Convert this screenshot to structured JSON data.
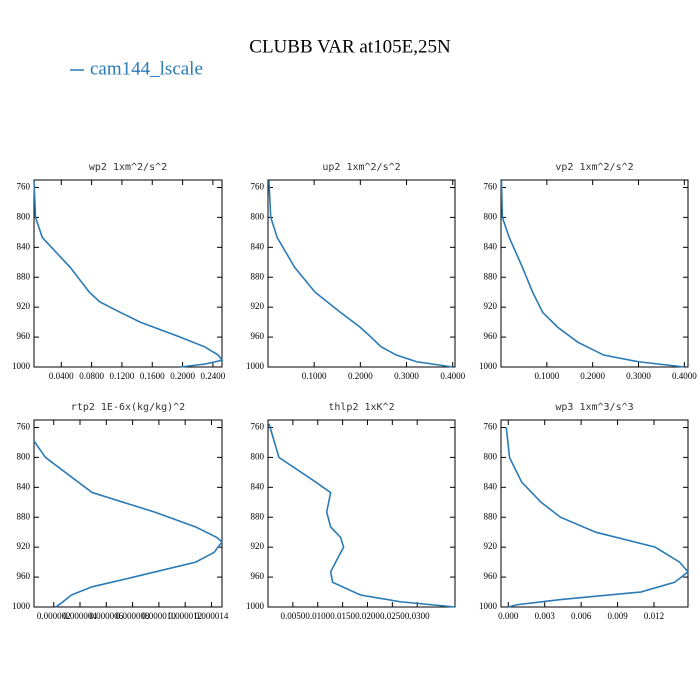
{
  "title": "CLUBB VAR at105E,25N",
  "chart_data": [
    {
      "type": "line",
      "title": "wp2   1xm^2/s^2",
      "y": [
        751,
        800,
        827,
        867,
        900,
        913,
        927,
        940,
        960,
        973,
        984,
        991,
        996,
        1000
      ],
      "series": [
        {
          "name": "cam144_lscale",
          "color": "#2a7ab5",
          "values": [
            0.004,
            0.006,
            0.015,
            0.052,
            0.077,
            0.091,
            0.118,
            0.144,
            0.197,
            0.229,
            0.247,
            0.252,
            0.23,
            0.197
          ]
        }
      ],
      "xlim": [
        0.004,
        0.252
      ],
      "xticks": [
        {
          "value": 0.04,
          "label": "0.0400"
        },
        {
          "value": 0.08,
          "label": "0.0800"
        },
        {
          "value": 0.12,
          "label": "0.1200"
        },
        {
          "value": 0.16,
          "label": "0.1600"
        },
        {
          "value": 0.2,
          "label": "0.2000"
        },
        {
          "value": 0.24,
          "label": "0.2400"
        }
      ],
      "ylim": [
        1000,
        750
      ],
      "yticks": [
        760,
        800,
        840,
        880,
        920,
        960,
        1000
      ]
    },
    {
      "type": "line",
      "title": "up2   1xm^2/s^2",
      "y": [
        751,
        800,
        827,
        867,
        900,
        927,
        947,
        960,
        973,
        984,
        993,
        1000
      ],
      "series": [
        {
          "name": "cam144_lscale",
          "color": "#2a7ab5",
          "values": [
            0.002,
            0.006,
            0.02,
            0.058,
            0.102,
            0.157,
            0.2,
            0.223,
            0.245,
            0.278,
            0.322,
            0.4
          ]
        }
      ],
      "xlim": [
        0,
        0.405
      ],
      "xticks": [
        {
          "value": 0.1,
          "label": "0.1000"
        },
        {
          "value": 0.2,
          "label": "0.2000"
        },
        {
          "value": 0.3,
          "label": "0.3000"
        },
        {
          "value": 0.4,
          "label": "0.4000"
        }
      ],
      "ylim": [
        1000,
        750
      ],
      "yticks": [
        760,
        800,
        840,
        880,
        920,
        960,
        1000
      ]
    },
    {
      "type": "line",
      "title": "vp2   1xm^2/s^2",
      "y": [
        751,
        800,
        827,
        867,
        900,
        927,
        947,
        967,
        984,
        993,
        1000
      ],
      "series": [
        {
          "name": "cam144_lscale",
          "color": "#2a7ab5",
          "values": [
            0.001,
            0.003,
            0.018,
            0.047,
            0.069,
            0.091,
            0.124,
            0.168,
            0.224,
            0.3,
            0.4
          ]
        }
      ],
      "xlim": [
        0,
        0.408
      ],
      "xticks": [
        {
          "value": 0.1,
          "label": "0.1000"
        },
        {
          "value": 0.2,
          "label": "0.2000"
        },
        {
          "value": 0.3,
          "label": "0.3000"
        },
        {
          "value": 0.4,
          "label": "0.4000"
        }
      ],
      "ylim": [
        1000,
        750
      ],
      "yticks": [
        760,
        800,
        840,
        880,
        920,
        960,
        1000
      ]
    },
    {
      "type": "line",
      "title": "rtp2   1E-6x(kg/kg)^2",
      "y": [
        778,
        800,
        847,
        873,
        893,
        907,
        913,
        927,
        940,
        960,
        973,
        984,
        993,
        1000
      ],
      "series": [
        {
          "name": "cam144_lscale",
          "color": "#2a7ab5",
          "values": [
            5e-07,
            1.37e-06,
            4.92e-06,
            9.66e-06,
            1.28e-05,
            1.44e-05,
            1.48e-05,
            1.42e-05,
            1.28e-05,
            8.08e-06,
            4.92e-06,
            3.34e-06,
            2.71e-06,
            2.16e-06
          ]
        }
      ],
      "xlim": [
        5e-07,
        1.48e-05
      ],
      "xticks": [
        {
          "value": 2e-06,
          "label": "0.000002"
        },
        {
          "value": 4e-06,
          "label": "0.000004"
        },
        {
          "value": 6e-06,
          "label": "0.000006"
        },
        {
          "value": 8e-06,
          "label": "0.000008"
        },
        {
          "value": 1e-05,
          "label": "0.000010"
        },
        {
          "value": 1.2e-05,
          "label": "0.000012"
        },
        {
          "value": 1.4e-05,
          "label": "0.000014"
        }
      ],
      "ylim": [
        1000,
        750
      ],
      "yticks": [
        760,
        800,
        840,
        880,
        920,
        960,
        1000
      ]
    },
    {
      "type": "line",
      "title": "thlp2   1xK^2",
      "y": [
        755,
        800,
        833,
        847,
        873,
        893,
        907,
        920,
        940,
        953,
        967,
        984,
        993,
        1000
      ],
      "series": [
        {
          "name": "cam144_lscale",
          "color": "#2a7ab5",
          "values": [
            0.0002,
            0.0022,
            0.0096,
            0.0126,
            0.0118,
            0.0126,
            0.0146,
            0.0152,
            0.0136,
            0.0126,
            0.013,
            0.0186,
            0.0266,
            0.0376
          ]
        }
      ],
      "xlim": [
        0,
        0.0376
      ],
      "xticks": [
        {
          "value": 0.005,
          "label": "0.0050"
        },
        {
          "value": 0.01,
          "label": "0.0100"
        },
        {
          "value": 0.015,
          "label": "0.0150"
        },
        {
          "value": 0.02,
          "label": "0.0200"
        },
        {
          "value": 0.025,
          "label": "0.0250"
        },
        {
          "value": 0.03,
          "label": "0.0300"
        }
      ],
      "ylim": [
        1000,
        750
      ],
      "yticks": [
        760,
        800,
        840,
        880,
        920,
        960,
        1000
      ]
    },
    {
      "type": "line",
      "title": "wp3   1xm^3/s^3",
      "y": [
        760,
        800,
        833,
        860,
        880,
        900,
        920,
        940,
        953,
        967,
        980,
        990,
        997,
        1000
      ],
      "series": [
        {
          "name": "cam144_lscale",
          "color": "#2a7ab5",
          "values": [
            -0.00016,
            0.0001,
            0.0011,
            0.0027,
            0.0043,
            0.0072,
            0.0121,
            0.0141,
            0.0148,
            0.0137,
            0.0109,
            0.0043,
            0.0007,
            0
          ]
        }
      ],
      "xlim": [
        -0.0006,
        0.0148
      ],
      "xticks": [
        {
          "value": 0,
          "label": "0.000"
        },
        {
          "value": 0.003,
          "label": "0.003"
        },
        {
          "value": 0.006,
          "label": "0.006"
        },
        {
          "value": 0.009,
          "label": "0.009"
        },
        {
          "value": 0.012,
          "label": "0.012"
        }
      ],
      "ylim": [
        1000,
        750
      ],
      "yticks": [
        760,
        800,
        840,
        880,
        920,
        960,
        1000
      ]
    }
  ]
}
